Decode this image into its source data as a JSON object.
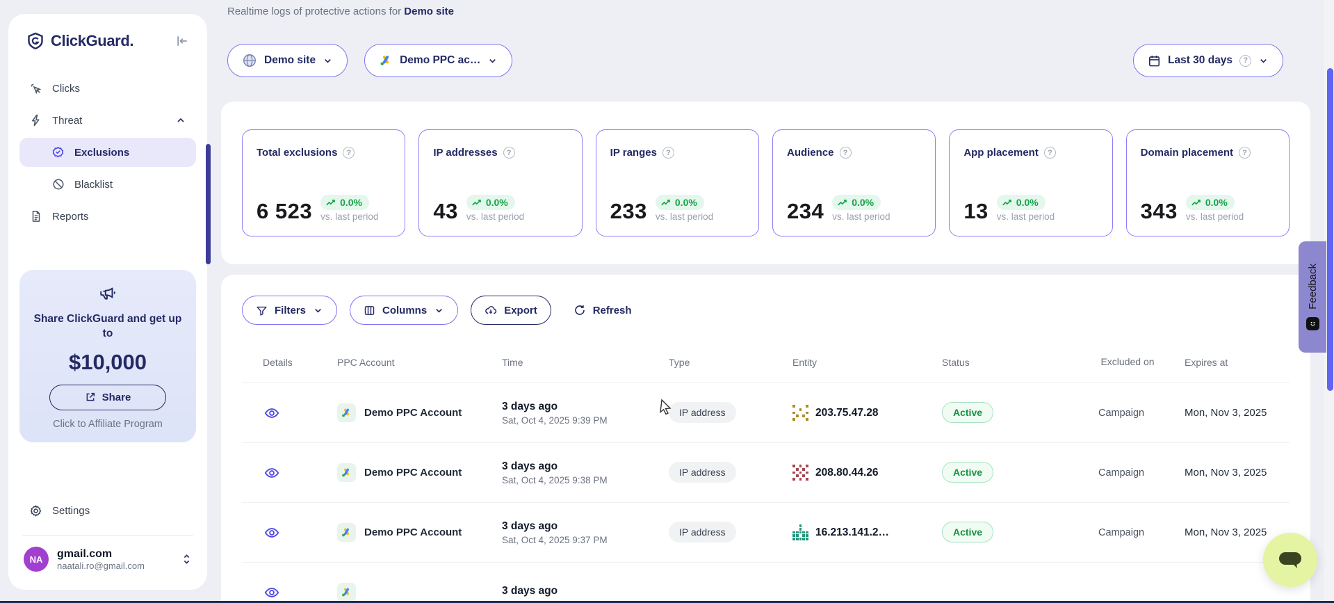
{
  "brand": {
    "name": "ClickGuard."
  },
  "sidebar": {
    "nav": {
      "clicks": "Clicks",
      "threat": "Threat",
      "exclusions": "Exclusions",
      "blacklist": "Blacklist",
      "reports": "Reports"
    },
    "promo": {
      "title": "Share ClickGuard and get up to",
      "amount": "$10,000",
      "share_label": "Share",
      "affiliate_label": "Click to Affiliate Program"
    },
    "settings_label": "Settings",
    "user": {
      "initials": "NA",
      "name": "gmail.com",
      "email": "naatali.ro@gmail.com"
    }
  },
  "header": {
    "subtitle_prefix": "Realtime logs of protective actions for",
    "subtitle_site": "Demo site",
    "site_selector": "Demo site",
    "ppc_selector": "Demo PPC ac…",
    "date_range": "Last 30 days"
  },
  "stats": {
    "caption": "vs. last period",
    "cards": [
      {
        "title": "Total exclusions",
        "value": "6 523",
        "change": "0.0%"
      },
      {
        "title": "IP addresses",
        "value": "43",
        "change": "0.0%"
      },
      {
        "title": "IP ranges",
        "value": "233",
        "change": "0.0%"
      },
      {
        "title": "Audience",
        "value": "234",
        "change": "0.0%"
      },
      {
        "title": "App placement",
        "value": "13",
        "change": "0.0%"
      },
      {
        "title": "Domain placement",
        "value": "343",
        "change": "0.0%"
      }
    ]
  },
  "toolbar": {
    "filters": "Filters",
    "columns": "Columns",
    "export": "Export",
    "refresh": "Refresh"
  },
  "table": {
    "headers": [
      "Details",
      "PPC Account",
      "Time",
      "Type",
      "Entity",
      "Status",
      "Excluded on",
      "Expires at"
    ],
    "rows": [
      {
        "ppc_account": "Demo PPC Account",
        "time_relative": "3 days ago",
        "time_exact": "Sat, Oct 4, 2025 9:39 PM",
        "type": "IP address",
        "entity": "203.75.47.28",
        "entity_icon_color": "#ac8c2e",
        "status": "Active",
        "excluded_on": "Campaign",
        "expires_at": "Mon, Nov 3, 2025"
      },
      {
        "ppc_account": "Demo PPC Account",
        "time_relative": "3 days ago",
        "time_exact": "Sat, Oct 4, 2025 9:38 PM",
        "type": "IP address",
        "entity": "208.80.44.26",
        "entity_icon_color": "#a4464e",
        "status": "Active",
        "excluded_on": "Campaign",
        "expires_at": "Mon, Nov 3, 2025"
      },
      {
        "ppc_account": "Demo PPC Account",
        "time_relative": "3 days ago",
        "time_exact": "Sat, Oct 4, 2025 9:37 PM",
        "type": "IP address",
        "entity": "16.213.141.2…",
        "entity_icon_color": "#27967d",
        "status": "Active",
        "excluded_on": "Campaign",
        "expires_at": "Mon, Nov 3, 2025"
      },
      {
        "time_relative": "3 days ago"
      }
    ]
  },
  "feedback_label": "Feedback",
  "colors": {
    "accent_purple": "#7f74f2",
    "brand_navy": "#232a63",
    "success_green": "#17a34a",
    "active_badge_bg": "#f0fbf4",
    "feedback_tab": "#8d87cf",
    "chat_bubble": "#e4f4a2"
  }
}
